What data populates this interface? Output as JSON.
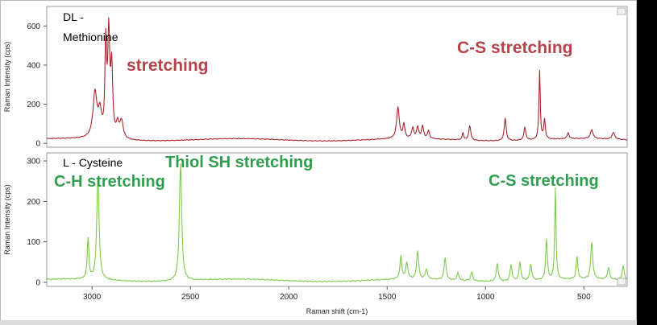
{
  "chart_data": [
    {
      "type": "line",
      "name_label": "DL - Methionine",
      "name_lines": [
        "DL -",
        "Methionine"
      ],
      "ylabel": "Raman Intensity (cps)",
      "xlabel": "",
      "xlim": [
        3230,
        280
      ],
      "ylim": [
        -20,
        700
      ],
      "y_ticks": [
        0,
        200,
        400,
        600
      ],
      "x_ticks": [],
      "line_color": "#a8242b",
      "annotations": [
        {
          "text": "stretching",
          "x": 2770,
          "y": 435,
          "color": "#b5444a"
        },
        {
          "text": "C-S stretching",
          "x": 1440,
          "y": 540,
          "color": "#b5444a"
        }
      ],
      "baseline": 18,
      "peaks": [
        {
          "x": 2985,
          "y": 230,
          "w": 12
        },
        {
          "x": 2960,
          "y": 120,
          "w": 10
        },
        {
          "x": 2930,
          "y": 460,
          "w": 5
        },
        {
          "x": 2915,
          "y": 515,
          "w": 6
        },
        {
          "x": 2900,
          "y": 350,
          "w": 6
        },
        {
          "x": 2850,
          "y": 90,
          "w": 10
        },
        {
          "x": 2870,
          "y": 70,
          "w": 8
        },
        {
          "x": 1445,
          "y": 160,
          "w": 8
        },
        {
          "x": 1415,
          "y": 70,
          "w": 6
        },
        {
          "x": 1370,
          "y": 55,
          "w": 6
        },
        {
          "x": 1345,
          "y": 60,
          "w": 6
        },
        {
          "x": 1320,
          "y": 65,
          "w": 6
        },
        {
          "x": 1290,
          "y": 40,
          "w": 6
        },
        {
          "x": 1115,
          "y": 35,
          "w": 5
        },
        {
          "x": 1080,
          "y": 75,
          "w": 6
        },
        {
          "x": 900,
          "y": 115,
          "w": 6
        },
        {
          "x": 800,
          "y": 65,
          "w": 6
        },
        {
          "x": 725,
          "y": 350,
          "w": 4
        },
        {
          "x": 700,
          "y": 100,
          "w": 5
        },
        {
          "x": 580,
          "y": 30,
          "w": 6
        },
        {
          "x": 460,
          "y": 45,
          "w": 8
        },
        {
          "x": 350,
          "y": 35,
          "w": 8
        }
      ]
    },
    {
      "type": "line",
      "name_label": "L - Cysteine",
      "name_lines": [
        "L - Cysteine"
      ],
      "ylabel": "Raman Intensity (cps)",
      "xlabel": "Raman shift (cm-1)",
      "xlim": [
        3230,
        280
      ],
      "ylim": [
        -10,
        320
      ],
      "y_ticks": [
        0,
        100,
        200,
        300
      ],
      "x_ticks": [
        3000,
        2500,
        2000,
        1500,
        1000,
        500
      ],
      "line_color": "#7ccb4c",
      "annotations": [
        {
          "text": "C-H stretching",
          "x": 3170,
          "y": 252,
          "color": "#2e9e4e"
        },
        {
          "text": "Thiol SH stretching",
          "x": 2615,
          "y": 300,
          "color": "#2e9e4e"
        },
        {
          "text": "C-S stretching",
          "x": 1000,
          "y": 256,
          "color": "#2e9e4e"
        }
      ],
      "baseline": 5,
      "peaks": [
        {
          "x": 3020,
          "y": 100,
          "w": 5
        },
        {
          "x": 2970,
          "y": 255,
          "w": 7
        },
        {
          "x": 2550,
          "y": 290,
          "w": 7
        },
        {
          "x": 1430,
          "y": 55,
          "w": 6
        },
        {
          "x": 1400,
          "y": 40,
          "w": 6
        },
        {
          "x": 1345,
          "y": 70,
          "w": 6
        },
        {
          "x": 1300,
          "y": 25,
          "w": 6
        },
        {
          "x": 1205,
          "y": 55,
          "w": 6
        },
        {
          "x": 1140,
          "y": 18,
          "w": 6
        },
        {
          "x": 1070,
          "y": 22,
          "w": 6
        },
        {
          "x": 940,
          "y": 45,
          "w": 6
        },
        {
          "x": 870,
          "y": 40,
          "w": 6
        },
        {
          "x": 825,
          "y": 45,
          "w": 6
        },
        {
          "x": 770,
          "y": 40,
          "w": 6
        },
        {
          "x": 690,
          "y": 100,
          "w": 5
        },
        {
          "x": 645,
          "y": 225,
          "w": 4
        },
        {
          "x": 535,
          "y": 55,
          "w": 5
        },
        {
          "x": 460,
          "y": 90,
          "w": 6
        },
        {
          "x": 375,
          "y": 30,
          "w": 6
        },
        {
          "x": 300,
          "y": 35,
          "w": 6
        }
      ]
    }
  ]
}
